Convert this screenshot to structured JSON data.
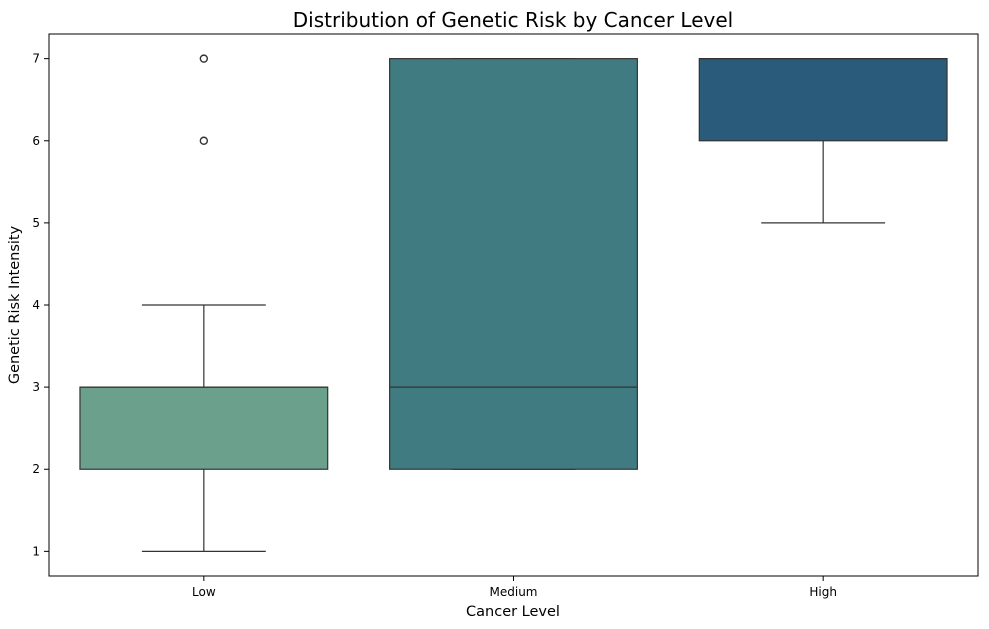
{
  "chart_data": {
    "type": "box",
    "title": "Distribution of Genetic Risk by Cancer Level",
    "xlabel": "Cancer Level",
    "ylabel": "Genetic Risk Intensity",
    "categories": [
      "Low",
      "Medium",
      "High"
    ],
    "ylim": [
      0.7,
      7.3
    ],
    "yticks": [
      1,
      2,
      3,
      4,
      5,
      6,
      7
    ],
    "boxes": [
      {
        "category": "Low",
        "whisker_low": 1,
        "q1": 2,
        "median": 3,
        "q3": 3,
        "whisker_high": 4,
        "outliers": [
          6,
          7
        ],
        "color": "#6aa08c"
      },
      {
        "category": "Medium",
        "whisker_low": 2,
        "q1": 2,
        "median": 3,
        "q3": 7,
        "whisker_high": 7,
        "outliers": [],
        "color": "#3f7b80"
      },
      {
        "category": "High",
        "whisker_low": 5,
        "q1": 6,
        "median": 7,
        "q3": 7,
        "whisker_high": 7,
        "outliers": [],
        "color": "#2b5b7a"
      }
    ],
    "grid": false,
    "legend": "none"
  }
}
